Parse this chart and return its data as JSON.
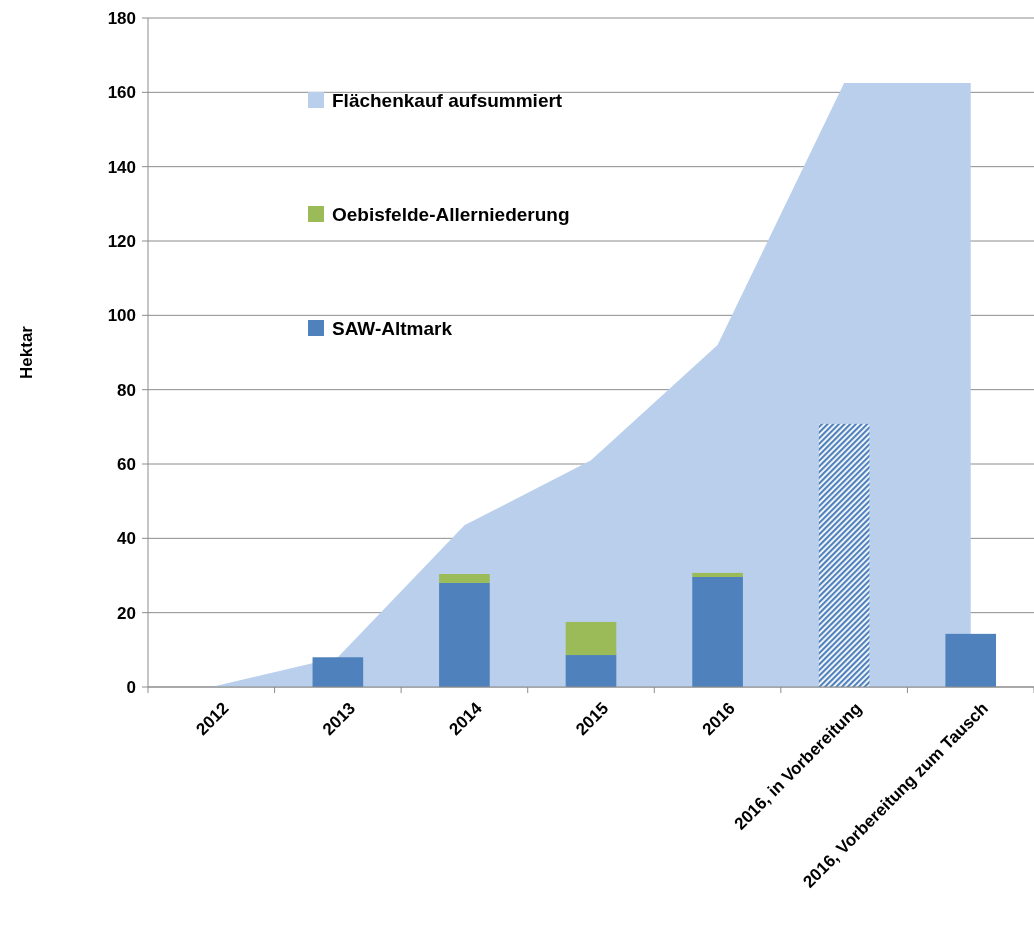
{
  "chart_data": {
    "type": "bar",
    "ylabel": "Hektar",
    "grid": "y",
    "legend": "top",
    "categories": [
      "2012",
      "2013",
      "2014",
      "2015",
      "2016",
      "2016, in Vorbereitung",
      "2016, Vorbereitung zum Tausch"
    ],
    "ylim": [
      0,
      180
    ],
    "yticks": [
      0,
      20,
      40,
      60,
      80,
      100,
      120,
      140,
      160,
      180
    ],
    "series": [
      {
        "name": "Flächenkauf aufsummiert",
        "type": "area",
        "color": "#b9cfec",
        "values": [
          0,
          8,
          43.5,
          61,
          92,
          162.5,
          162.5
        ]
      },
      {
        "name": "SAW-Altmark",
        "color": "#4f81bd",
        "values": [
          null,
          8,
          28,
          8.6,
          29.6,
          null,
          14.3
        ]
      },
      {
        "name": "Oebisfelde-Allerniederung",
        "color": "#9bbb59",
        "base": [
          null,
          null,
          28,
          8.6,
          29.6,
          null,
          null
        ],
        "values": [
          null,
          null,
          2.4,
          8.9,
          1.1,
          null,
          null
        ]
      },
      {
        "color": "#4f81bd",
        "values": [
          null,
          null,
          null,
          null,
          null,
          70.8,
          null
        ]
      }
    ]
  }
}
